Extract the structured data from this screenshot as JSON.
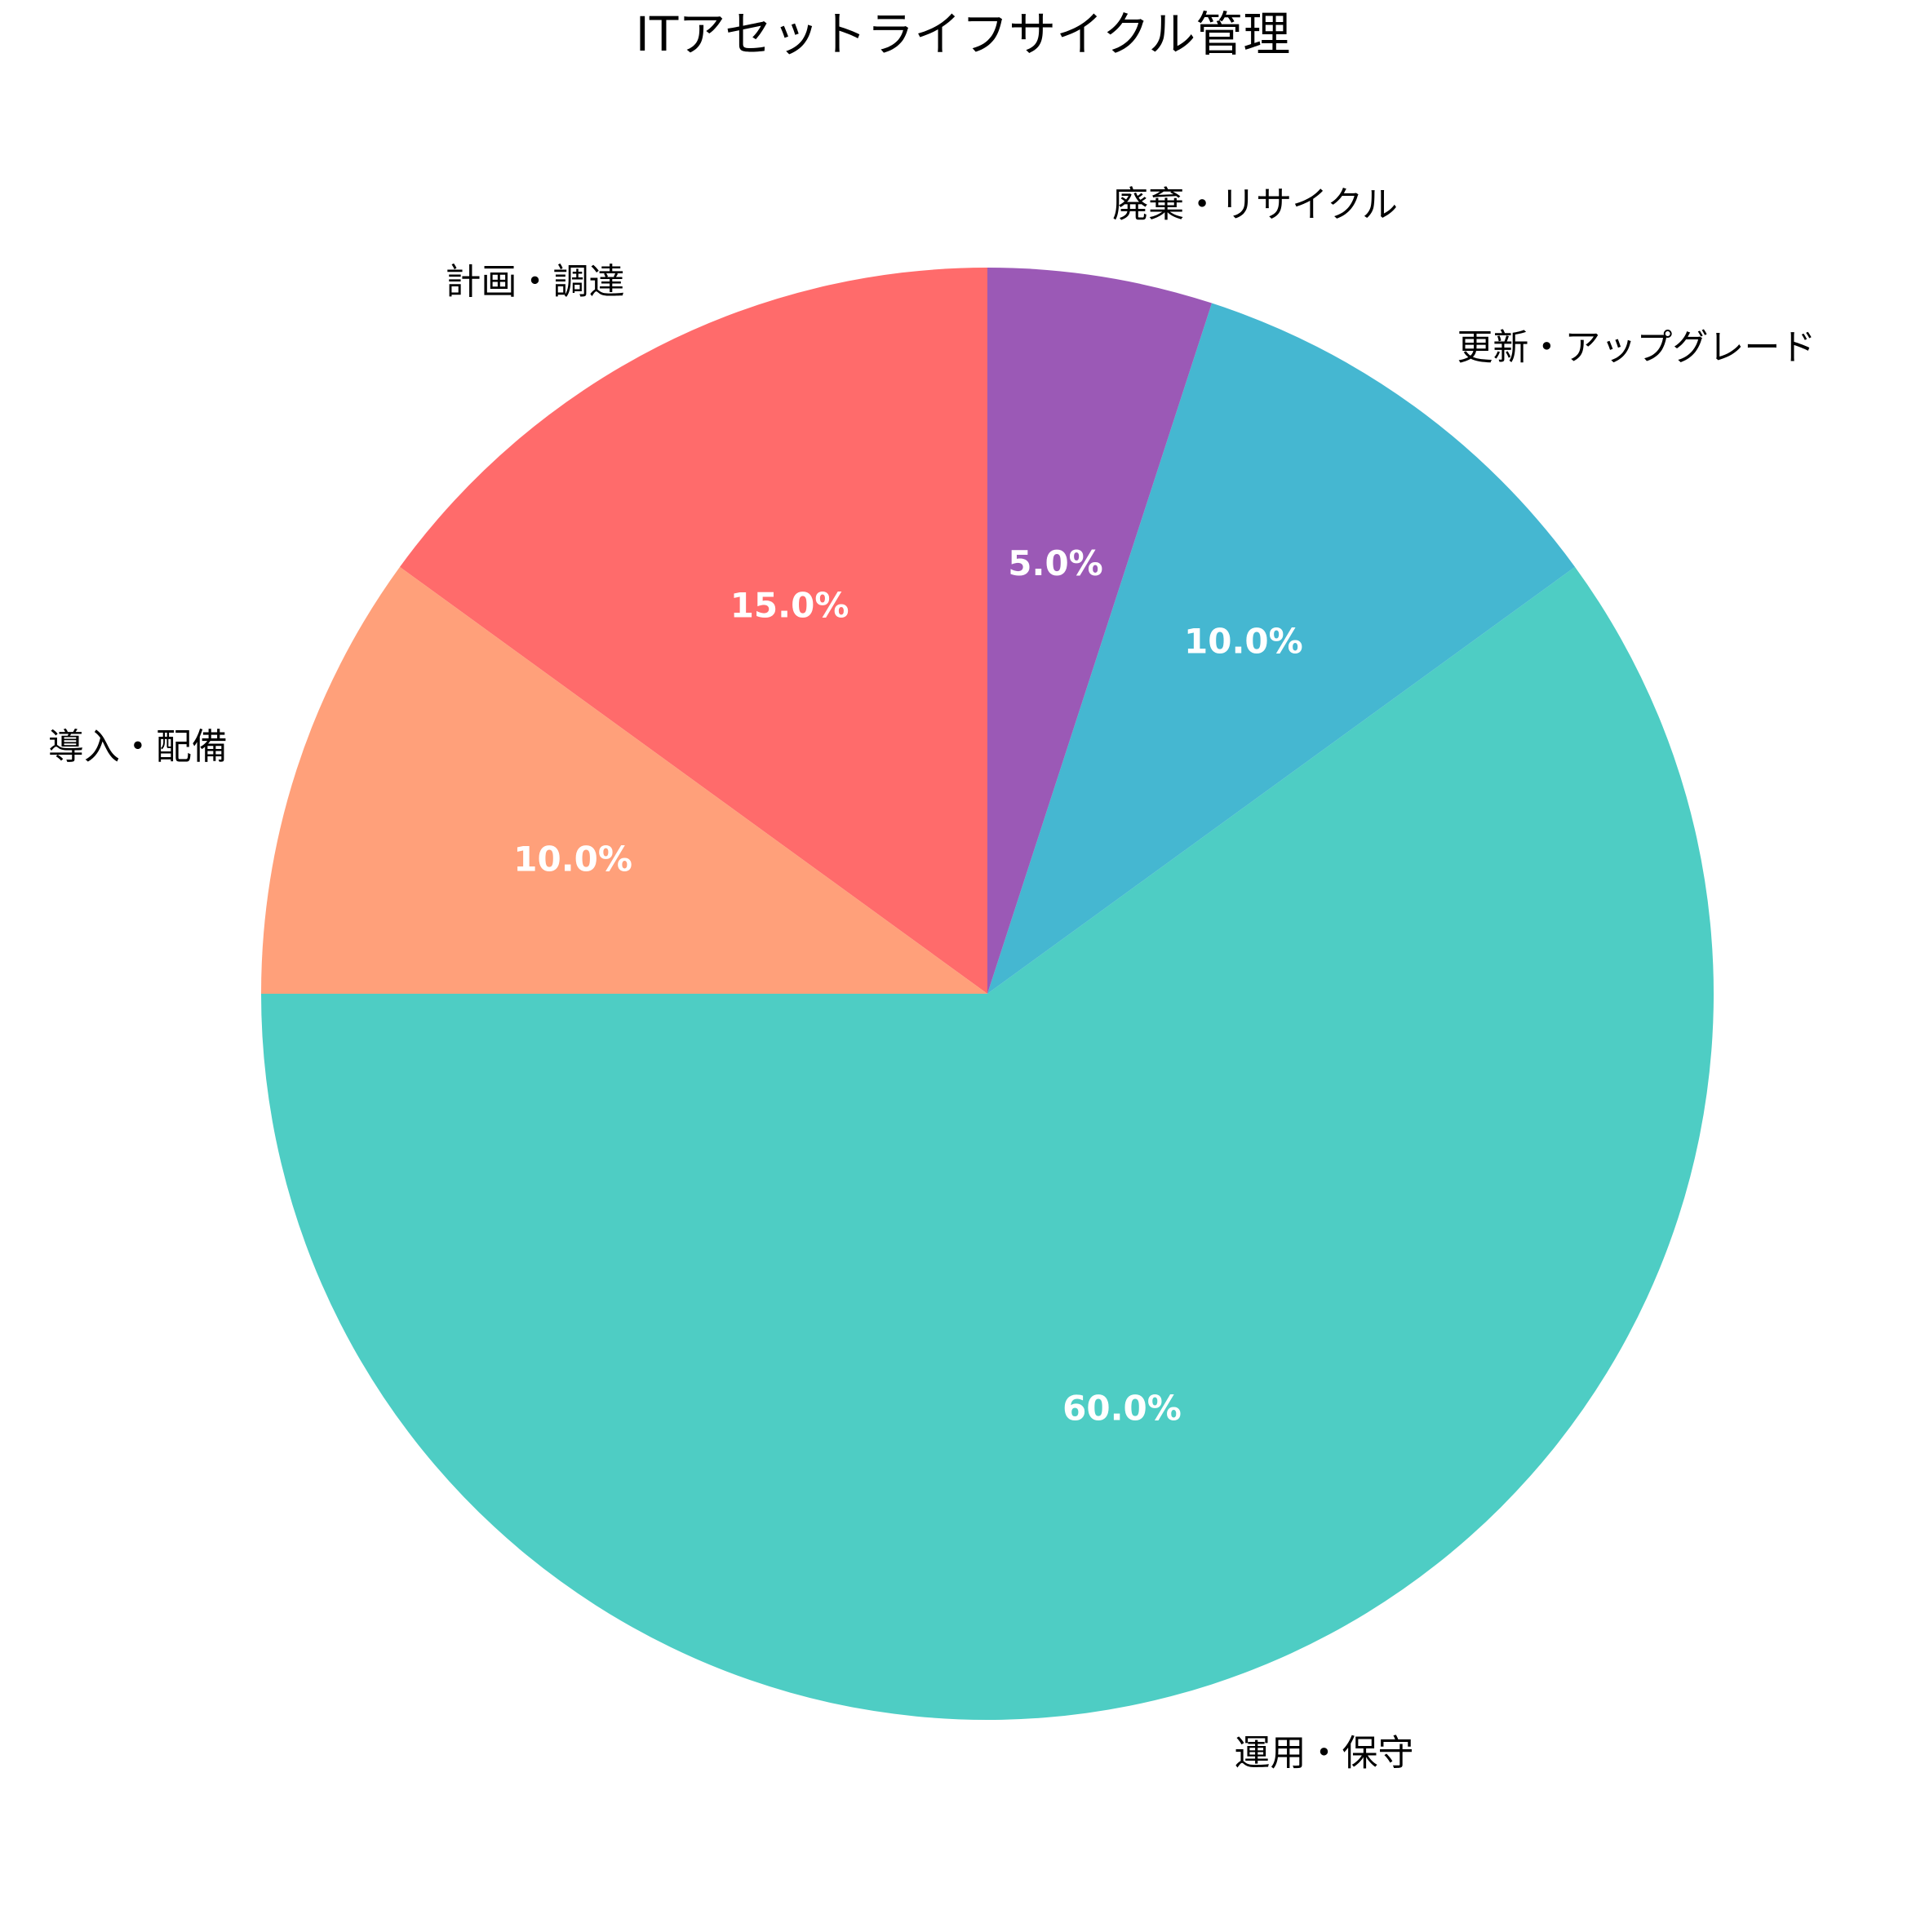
{
  "chart_data": {
    "type": "pie",
    "title": "ITアセットライフサイクル管理",
    "slices": [
      {
        "label": "計画・調達",
        "value": 15.0,
        "pct_label": "15.0%",
        "color": "#FF6B6B"
      },
      {
        "label": "導入・配備",
        "value": 10.0,
        "pct_label": "10.0%",
        "color": "#FFA07A"
      },
      {
        "label": "運用・保守",
        "value": 60.0,
        "pct_label": "60.0%",
        "color": "#4ECDC4"
      },
      {
        "label": "更新・アップグレード",
        "value": 10.0,
        "pct_label": "10.0%",
        "color": "#45B7D1"
      },
      {
        "label": "廃棄・リサイクル",
        "value": 5.0,
        "pct_label": "5.0%",
        "color": "#9B59B6"
      }
    ],
    "start_angle": 90,
    "direction": "counterclockwise"
  }
}
